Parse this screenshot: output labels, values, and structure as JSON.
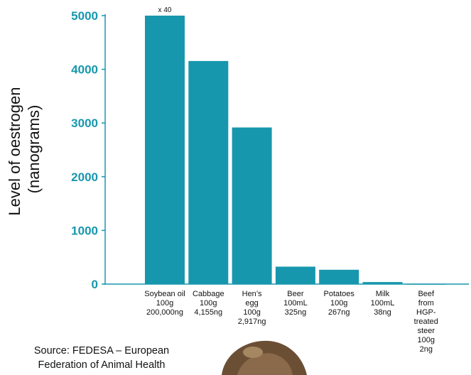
{
  "chart_data": {
    "type": "bar",
    "ylabel": [
      "Level of oestrogen",
      "(nanograms)"
    ],
    "ylim": [
      0,
      5000
    ],
    "yticks": [
      0,
      1000,
      2000,
      3000,
      4000,
      5000
    ],
    "categories": [
      [
        "Soybean oil",
        "100g",
        "200,000ng"
      ],
      [
        "Cabbage",
        "100g",
        "4,155ng"
      ],
      [
        "Hen’s",
        "egg",
        "100g",
        "2,917ng"
      ],
      [
        "Beer",
        "100mL",
        "325ng"
      ],
      [
        "Potatoes",
        "100g",
        "267ng"
      ],
      [
        "Milk",
        "100mL",
        "38ng"
      ],
      [
        "Beef",
        "from",
        "HGP-",
        "treated",
        "steer",
        "100g",
        "2ng"
      ]
    ],
    "values": [
      5000,
      4155,
      2917,
      325,
      267,
      38,
      2
    ],
    "bar_annotations": [
      "x 40",
      "",
      "",
      "",
      "",
      "",
      ""
    ],
    "colors": {
      "bar": "#1797ad",
      "tick_label": "#1797ad",
      "axis": "#1797ad"
    },
    "grid": false,
    "legend": "none"
  },
  "source_lines": [
    "Source: FEDESA – European",
    "Federation of Animal Health"
  ]
}
